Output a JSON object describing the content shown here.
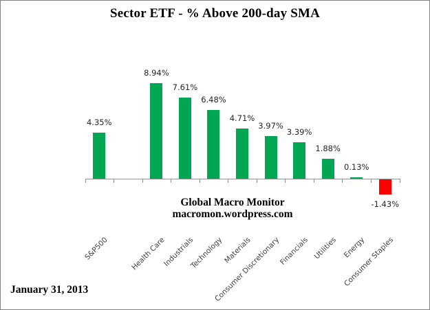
{
  "title": "Sector ETF - % Above 200-day SMA",
  "watermark": {
    "line1": "Global Macro Monitor",
    "line2": "macromon.wordpress.com"
  },
  "date_note": "January 31, 2013",
  "chart_data": {
    "type": "bar",
    "title": "Sector ETF - % Above 200-day SMA",
    "categories": [
      "S&P500",
      "",
      "Health Care",
      "Industrials",
      "Technology",
      "Materials",
      "Consumer Discretionary",
      "Financials",
      "Utilities",
      "Energy",
      "Consumer Staples"
    ],
    "values": [
      4.35,
      null,
      8.94,
      7.61,
      6.48,
      4.71,
      3.97,
      3.39,
      1.88,
      0.13,
      -1.43
    ],
    "value_labels": [
      "4.35%",
      "",
      "8.94%",
      "7.61%",
      "6.48%",
      "4.71%",
      "3.97%",
      "3.39%",
      "1.88%",
      "0.13%",
      "-1.43%"
    ],
    "xlabel": "",
    "ylabel": "",
    "ylim": [
      -2,
      10
    ],
    "grid": false,
    "legend": false,
    "y_axis_visible": false,
    "data_labels": true,
    "colors": {
      "bar_positive": "#00A651",
      "bar_negative": "#FF0000",
      "axis": "#919191",
      "value_label_text": "#262626",
      "category_label_text": "#404040"
    }
  }
}
